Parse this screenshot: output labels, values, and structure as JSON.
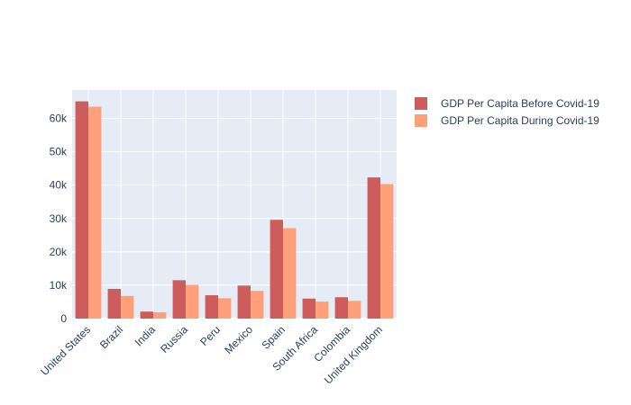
{
  "chart_data": {
    "type": "bar",
    "categories": [
      "United States",
      "Brazil",
      "India",
      "Russia",
      "Peru",
      "Mexico",
      "Spain",
      "South Africa",
      "Colombia",
      "United Kingdom"
    ],
    "series": [
      {
        "name": "GDP Per Capita Before Covid-19",
        "color": "#cd5c5c",
        "values": [
          65100,
          8900,
          2100,
          11500,
          7000,
          9900,
          29600,
          6000,
          6400,
          42300
        ]
      },
      {
        "name": "GDP Per Capita During Covid-19",
        "color": "#ffa07a",
        "values": [
          63500,
          6800,
          1900,
          10100,
          6100,
          8300,
          27100,
          5100,
          5300,
          40300
        ]
      }
    ],
    "ylim": [
      0,
      68500
    ],
    "yticks": [
      0,
      10000,
      20000,
      30000,
      40000,
      50000,
      60000
    ],
    "ytick_labels": [
      "0",
      "10k",
      "20k",
      "30k",
      "40k",
      "50k",
      "60k"
    ],
    "grid": true,
    "legend_position": "top-right",
    "plot_background": "#e5ecf6",
    "title": "",
    "xlabel": "",
    "ylabel": ""
  }
}
